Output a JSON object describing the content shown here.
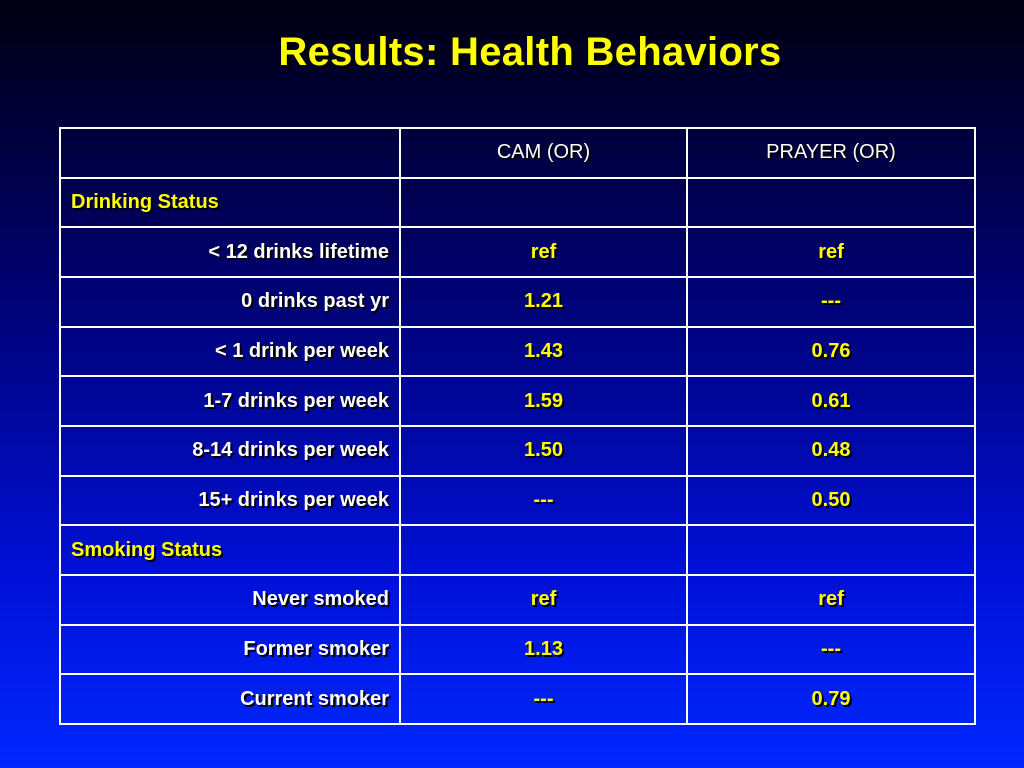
{
  "title": "Results: Health Behaviors",
  "table": {
    "headers": [
      "",
      "CAM (OR)",
      "PRAYER (OR)"
    ],
    "rows": [
      {
        "type": "section",
        "label": "Drinking Status",
        "cam": "",
        "prayer": ""
      },
      {
        "type": "row",
        "label": "< 12 drinks lifetime",
        "cam": "ref",
        "prayer": "ref"
      },
      {
        "type": "row",
        "label": "0 drinks past yr",
        "cam": "1.21",
        "prayer": "---"
      },
      {
        "type": "row",
        "label": "< 1 drink per week",
        "cam": "1.43",
        "prayer": "0.76"
      },
      {
        "type": "row",
        "label": "1-7 drinks per week",
        "cam": "1.59",
        "prayer": "0.61"
      },
      {
        "type": "row",
        "label": "8-14 drinks per week",
        "cam": "1.50",
        "prayer": "0.48"
      },
      {
        "type": "row",
        "label": "15+ drinks per week",
        "cam": "---",
        "prayer": "0.50"
      },
      {
        "type": "section",
        "label": "Smoking Status",
        "cam": "",
        "prayer": ""
      },
      {
        "type": "row",
        "label": "Never smoked",
        "cam": "ref",
        "prayer": "ref"
      },
      {
        "type": "row",
        "label": "Former smoker",
        "cam": "1.13",
        "prayer": "---"
      },
      {
        "type": "row",
        "label": "Current smoker",
        "cam": "---",
        "prayer": "0.79"
      }
    ]
  },
  "colors": {
    "title": "#ffff00",
    "section_label": "#ffff00",
    "values": "#ffff00",
    "row_label": "#ffffff",
    "border": "#ffffff"
  }
}
